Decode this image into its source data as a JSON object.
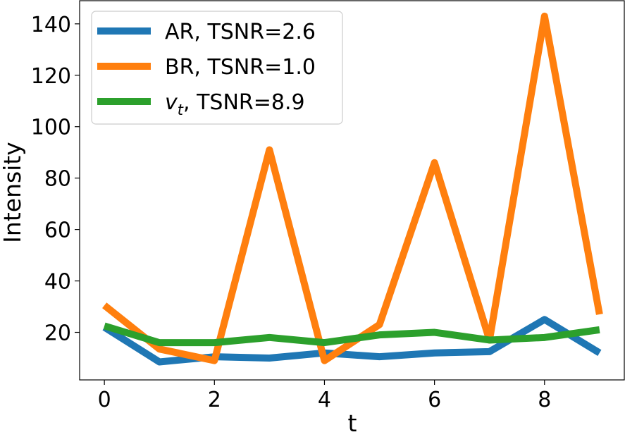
{
  "chart_data": {
    "type": "line",
    "xlabel": "t",
    "ylabel": "Intensity",
    "x": [
      0,
      1,
      2,
      3,
      4,
      5,
      6,
      7,
      8,
      9
    ],
    "xlim": [
      -0.45,
      9.45
    ],
    "ylim": [
      1.5,
      149
    ],
    "xticks": [
      "0",
      "2",
      "4",
      "6",
      "8"
    ],
    "xtick_values": [
      0,
      2,
      4,
      6,
      8
    ],
    "yticks": [
      "20",
      "40",
      "60",
      "80",
      "100",
      "120",
      "140"
    ],
    "ytick_values": [
      20,
      40,
      60,
      80,
      100,
      120,
      140
    ],
    "grid": false,
    "legend_position": "top-left",
    "series": [
      {
        "name": "AR, TSNR=2.6",
        "legend_main": "AR, TSNR=2.6",
        "legend_var": "",
        "legend_sub": "",
        "legend_rest": "",
        "color": "#1f77b4",
        "values": [
          22,
          8.5,
          10.5,
          10,
          12,
          10.5,
          12,
          12.5,
          25,
          12
        ]
      },
      {
        "name": "BR, TSNR=1.0",
        "legend_main": "BR, TSNR=1.0",
        "legend_var": "",
        "legend_sub": "",
        "legend_rest": "",
        "color": "#ff7f0e",
        "values": [
          30.5,
          13.5,
          9,
          91,
          9,
          23,
          86,
          17,
          143,
          27
        ]
      },
      {
        "name": "v_t, TSNR=8.9",
        "legend_main": "",
        "legend_var": "v",
        "legend_sub": "t",
        "legend_rest": ", TSNR=8.9",
        "color": "#2ca02c",
        "values": [
          22.5,
          16,
          16,
          18,
          16,
          19,
          20,
          17,
          18,
          21
        ]
      }
    ]
  }
}
